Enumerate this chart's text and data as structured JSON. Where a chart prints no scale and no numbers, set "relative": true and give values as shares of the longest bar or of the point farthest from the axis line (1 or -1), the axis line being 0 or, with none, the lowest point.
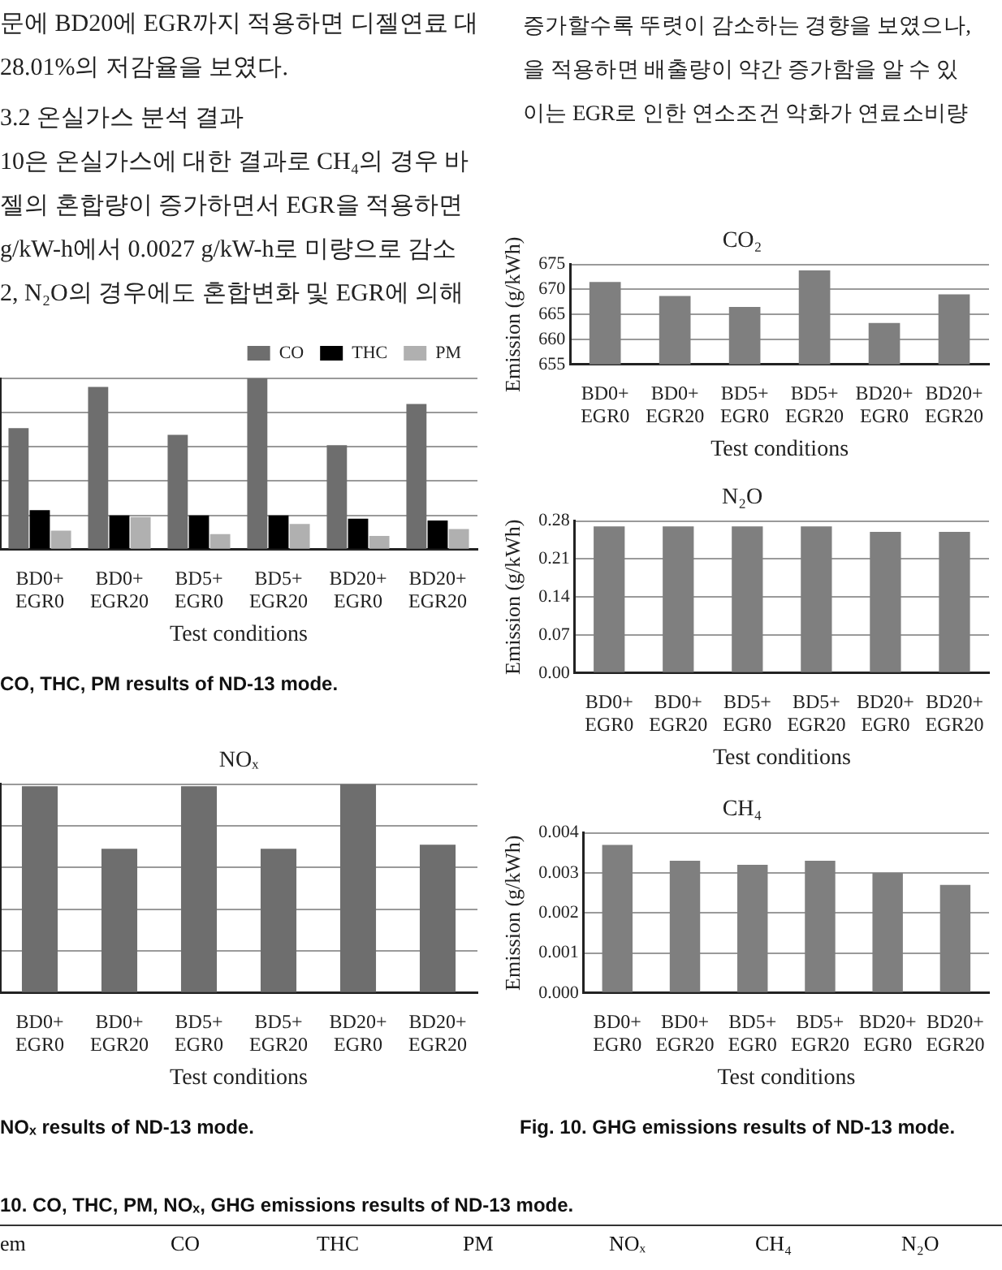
{
  "chart_data": [
    {
      "type": "other",
      "annotations": [
        "문에 BD20에 EGR까지 적용하면 디젤연료 대",
        "28.01%의 저감율을 보였다.",
        "3.2 온실가스 분석 결과",
        "10은 온실가스에 대한 결과로 CH₄의 경우 바",
        "젤의 혼합량이 증가하면서 EGR을 적용하면",
        "g/kW-h에서 0.0027 g/kW-h로 미량으로 감소",
        "2, N₂O의 경우에도 혼합변화 및 EGR에 의해"
      ]
    },
    {
      "type": "other",
      "annotations": [
        "증가할수록 뚜렷이 감소하는 경향을 보였으나,",
        "을 적용하면 배출량이 약간 증가함을 알 수 있",
        "이는 EGR로 인한 연소조건 악화가 연료소비량"
      ]
    },
    {
      "type": "bar",
      "xlabel": "Test conditions",
      "categories": [
        "BD0+ EGR0",
        "BD0+ EGR20",
        "BD5+ EGR0",
        "BD5+ EGR20",
        "BD20+ EGR0",
        "BD20+ EGR20"
      ],
      "relative": true,
      "grid": "y",
      "legend": "top right",
      "annotations": [
        "CO, THC, PM results of ND-13 mode."
      ],
      "series": [
        {
          "name": "CO",
          "color": "#6e6e6e",
          "values": [
            0.71,
            0.95,
            0.67,
            1,
            0.61,
            0.85
          ]
        },
        {
          "name": "THC",
          "color": "#000000",
          "values": [
            0.23,
            0.2,
            0.2,
            0.2,
            0.18,
            0.17
          ]
        },
        {
          "name": "PM",
          "color": "#b0b0b0",
          "values": [
            0.11,
            0.19,
            0.09,
            0.15,
            0.08,
            0.12
          ]
        }
      ]
    },
    {
      "type": "bar",
      "title": "CO₂",
      "xlabel": "Test conditions",
      "ylabel": "Emission (g/kWh)",
      "categories": [
        "BD0+ EGR0",
        "BD0+ EGR20",
        "BD5+ EGR0",
        "BD5+ EGR20",
        "BD20+ EGR0",
        "BD20+ EGR20"
      ],
      "values": [
        671.5,
        668.7,
        666.5,
        673.8,
        663.3,
        669
      ],
      "color": "#7f7f7f",
      "ylim": [
        655,
        675
      ],
      "yticks": [
        655,
        660,
        665,
        670,
        675
      ],
      "grid": "y"
    },
    {
      "type": "bar",
      "title": "N₂O",
      "xlabel": "Test conditions",
      "ylabel": "Emission (g/kWh)",
      "categories": [
        "BD0+ EGR0",
        "BD0+ EGR20",
        "BD5+ EGR0",
        "BD5+ EGR20",
        "BD20+ EGR0",
        "BD20+ EGR20"
      ],
      "values": [
        0.27,
        0.27,
        0.27,
        0.27,
        0.26,
        0.26
      ],
      "color": "#7f7f7f",
      "ylim": [
        0,
        0.28
      ],
      "yticks": [
        {
          "value": 0,
          "label": "0.00"
        },
        0.07,
        0.14,
        0.21,
        0.28
      ],
      "grid": "y"
    },
    {
      "type": "bar",
      "title": "NOₓ",
      "xlabel": "Test conditions",
      "categories": [
        "BD0+ EGR0",
        "BD0+ EGR20",
        "BD5+ EGR0",
        "BD5+ EGR20",
        "BD20+ EGR0",
        "BD20+ EGR20"
      ],
      "relative": true,
      "values": [
        0.99,
        0.69,
        0.99,
        0.69,
        1,
        0.71
      ],
      "color": "#6e6e6e",
      "grid": "y",
      "annotations": [
        "NOₓ results of ND-13 mode."
      ]
    },
    {
      "type": "bar",
      "title": "CH₄",
      "xlabel": "Test conditions",
      "ylabel": "Emission (g/kWh)",
      "categories": [
        "BD0+ EGR0",
        "BD0+ EGR20",
        "BD5+ EGR0",
        "BD5+ EGR20",
        "BD20+ EGR0",
        "BD20+ EGR20"
      ],
      "values": [
        0.0037,
        0.0033,
        0.0032,
        0.0033,
        0.003,
        0.0027
      ],
      "color": "#7f7f7f",
      "ylim": [
        0,
        0.004
      ],
      "yticks": [
        {
          "value": 0,
          "label": "0.000"
        },
        0.001,
        0.002,
        0.003,
        0.004
      ],
      "grid": "y",
      "annotations": [
        "Fig. 10. GHG emissions results of ND-13 mode."
      ]
    },
    {
      "type": "other",
      "annotations": [
        "10. CO, THC, PM, NOₓ, GHG emissions results of ND-13 mode.",
        "em",
        "CO",
        "THC",
        "PM",
        "NOₓ",
        "CH₄",
        "N₂O"
      ]
    }
  ]
}
